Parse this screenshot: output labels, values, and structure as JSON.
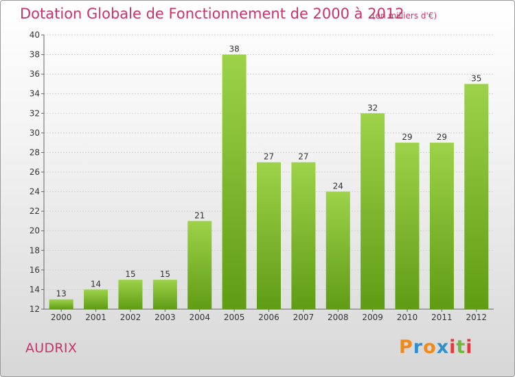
{
  "header": {
    "title": "Dotation Globale de Fonctionnement de 2000 à 2012",
    "subtitle": "(en milliers d'€)"
  },
  "footer": {
    "commune": "AUDRIX",
    "logo": "Proxiti"
  },
  "colors": {
    "title": "#c8336b",
    "bar_top": "#9dd24a",
    "bar_bottom": "#5f9c14",
    "logo_letters": [
      "#f08a1c",
      "#2f8fcf",
      "#f08a1c",
      "#2f8fcf",
      "#e03a3a",
      "#6fb83a",
      "#e03a3a"
    ]
  },
  "chart_data": {
    "type": "bar",
    "title": "Dotation Globale de Fonctionnement de 2000 à 2012",
    "subtitle": "(en milliers d'€)",
    "categories": [
      "2000",
      "2001",
      "2002",
      "2003",
      "2004",
      "2005",
      "2006",
      "2007",
      "2008",
      "2009",
      "2010",
      "2011",
      "2012"
    ],
    "values": [
      13,
      14,
      15,
      15,
      21,
      38,
      27,
      27,
      24,
      32,
      29,
      29,
      35
    ],
    "xlabel": "",
    "ylabel": "",
    "ylim": [
      12,
      40
    ],
    "yticks": [
      12,
      14,
      16,
      18,
      20,
      22,
      24,
      26,
      28,
      30,
      32,
      34,
      36,
      38,
      40
    ],
    "grid": true
  }
}
